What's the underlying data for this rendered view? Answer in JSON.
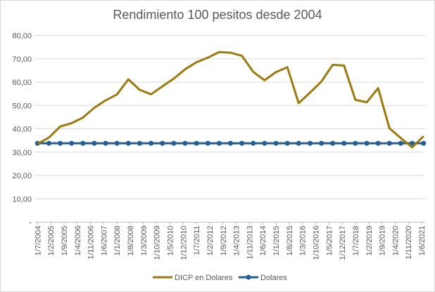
{
  "chart_data": {
    "type": "line",
    "title": "Rendimiento 100 pesitos desde 2004",
    "xlabel": "",
    "ylabel": "",
    "ylim": [
      0,
      80
    ],
    "y_ticks": [
      "-",
      "10,00",
      "20,00",
      "30,00",
      "40,00",
      "50,00",
      "60,00",
      "70,00",
      "80,00"
    ],
    "x_tick_labels": [
      "1/7/2004",
      "1/2/2005",
      "1/9/2005",
      "1/4/2006",
      "1/11/2006",
      "1/6/2007",
      "1/1/2008",
      "1/8/2008",
      "1/3/2009",
      "1/10/2009",
      "1/5/2010",
      "1/12/2010",
      "1/7/2011",
      "1/2/2012",
      "1/9/2012",
      "1/4/2013",
      "1/11/2013",
      "1/6/2014",
      "1/1/2015",
      "1/8/2015",
      "1/3/2016",
      "1/10/2016",
      "1/5/2017",
      "1/12/2017",
      "1/7/2018",
      "1/2/2019",
      "1/9/2019",
      "1/4/2020",
      "1/11/2020",
      "1/6/2021"
    ],
    "x": [
      "2004-07",
      "2005-01",
      "2005-07",
      "2006-01",
      "2006-07",
      "2007-01",
      "2007-07",
      "2008-01",
      "2008-07",
      "2009-01",
      "2009-07",
      "2010-01",
      "2010-07",
      "2011-01",
      "2011-07",
      "2012-01",
      "2012-07",
      "2013-01",
      "2013-07",
      "2014-01",
      "2014-07",
      "2015-01",
      "2015-07",
      "2016-01",
      "2016-07",
      "2017-01",
      "2017-07",
      "2018-01",
      "2018-07",
      "2019-01",
      "2019-07",
      "2020-01",
      "2020-07",
      "2021-01",
      "2021-07"
    ],
    "series": [
      {
        "name": "DICP en Dolares",
        "color": "#9C7A0E",
        "marker": "none",
        "values": [
          33.6,
          36.2,
          41.0,
          42.4,
          44.8,
          49.0,
          52.2,
          54.7,
          61.2,
          56.7,
          54.8,
          58.2,
          61.5,
          65.5,
          68.5,
          70.5,
          72.9,
          72.6,
          71.3,
          64.4,
          60.8,
          64.3,
          66.4,
          51.0,
          55.5,
          60.2,
          67.4,
          67.1,
          52.4,
          51.4,
          57.4,
          40.2,
          36.0,
          32.1,
          36.8
        ]
      },
      {
        "name": "Dolares",
        "color": "#255E91",
        "marker": "circle",
        "values": [
          33.8,
          33.8,
          33.8,
          33.8,
          33.8,
          33.8,
          33.8,
          33.8,
          33.8,
          33.8,
          33.8,
          33.8,
          33.8,
          33.8,
          33.8,
          33.8,
          33.8,
          33.8,
          33.8,
          33.8,
          33.8,
          33.8,
          33.8,
          33.8,
          33.8,
          33.8,
          33.8,
          33.8,
          33.8,
          33.8,
          33.8,
          33.8,
          33.8,
          33.8,
          33.8
        ]
      }
    ],
    "grid": true,
    "legend": "bottom"
  }
}
